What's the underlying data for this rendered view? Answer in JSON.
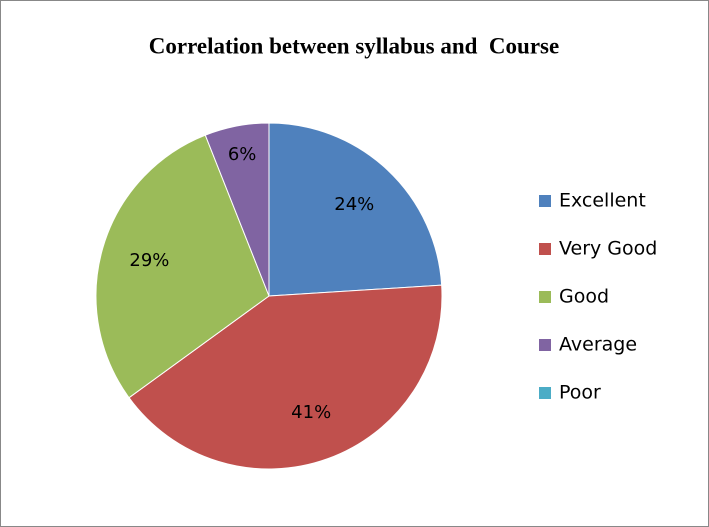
{
  "chart_data": {
    "type": "pie",
    "title": "Correlation between syllabus and  Course",
    "categories": [
      "Excellent",
      "Very Good",
      "Good",
      "Average",
      "Poor"
    ],
    "values": [
      24,
      41,
      29,
      6,
      0
    ],
    "value_labels": [
      "24%",
      "41%",
      "29%",
      "6%",
      null
    ],
    "colors": [
      "#4f81bd",
      "#c0504d",
      "#9bbb59",
      "#8064a2",
      "#4bacc6"
    ],
    "legend": "right"
  }
}
